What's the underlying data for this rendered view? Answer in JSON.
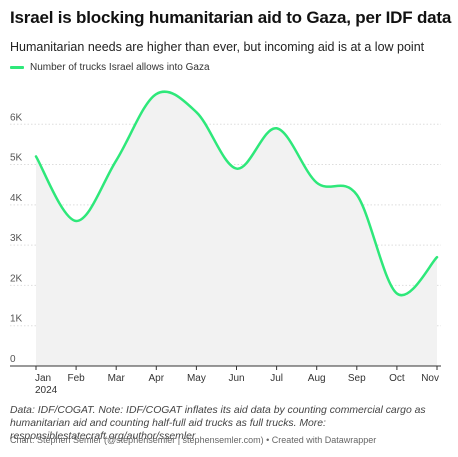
{
  "title": "Israel is blocking humanitarian aid to Gaza, per IDF data",
  "subtitle": "Humanitarian needs are higher than ever, but incoming aid is at a low point",
  "notes": "Data: IDF/COGAT. Note: IDF/COGAT inflates its aid data by counting commercial cargo as humanitarian aid and counting half-full aid trucks as full trucks. More: responsiblestatecraft.org/author/ssemler",
  "credit": "Chart: Stephen Semler (@stephensemler | stephensemler.com) • Created with Datawrapper",
  "colors": {
    "line": "#2ee87a",
    "area": "#f2f2f2",
    "grid": "#dddddd"
  },
  "chart_data": {
    "type": "line",
    "title": "Israel is blocking humanitarian aid to Gaza, per IDF data",
    "subtitle": "Humanitarian needs are higher than ever, but incoming aid is at a low point",
    "xlabel": "",
    "ylabel": "",
    "legend_position": "top-left",
    "grid": true,
    "ylim": [
      0,
      6900
    ],
    "y_ticks": [
      0,
      1000,
      2000,
      3000,
      4000,
      5000,
      6000
    ],
    "y_tick_labels": [
      "0",
      "1K",
      "2K",
      "3K",
      "4K",
      "5K",
      "6K"
    ],
    "x_tick_labels": [
      "Jan",
      "Feb",
      "Mar",
      "Apr",
      "May",
      "Jun",
      "Jul",
      "Aug",
      "Sep",
      "Oct",
      "Nov"
    ],
    "x_tick_sublabel": "2024",
    "series": [
      {
        "name": "Number of trucks Israel allows into Gaza",
        "x": [
          "Jan",
          "Feb",
          "Mar",
          "Apr",
          "May",
          "Jun",
          "Jul",
          "Aug",
          "Sep",
          "Oct",
          "Nov"
        ],
        "values": [
          5200,
          3600,
          5100,
          6750,
          6300,
          4900,
          5900,
          4550,
          4250,
          1800,
          2700
        ]
      }
    ]
  }
}
